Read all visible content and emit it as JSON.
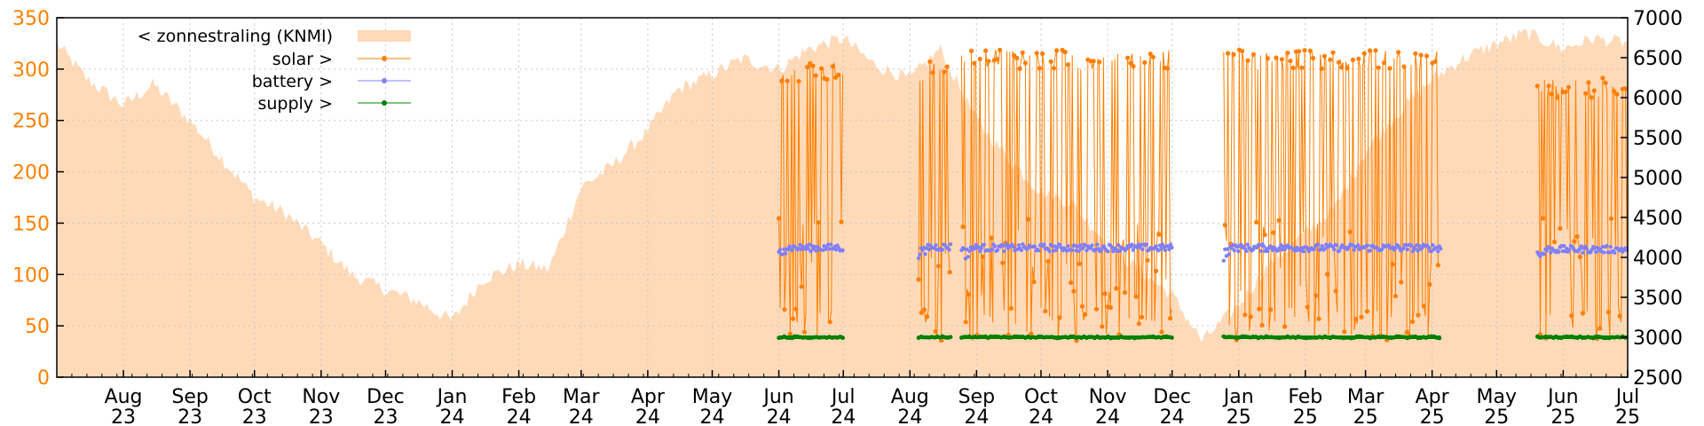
{
  "chart_data": {
    "type": "line",
    "title": "",
    "xlabel": "",
    "ylabel_left": "",
    "ylabel_right": "",
    "x_range": [
      "2023-07",
      "2025-07"
    ],
    "ylim_left": [
      0,
      350
    ],
    "ylim_right": [
      2500,
      7000
    ],
    "y_left_ticks": [
      0,
      50,
      100,
      150,
      200,
      250,
      300,
      350
    ],
    "y_right_ticks": [
      2500,
      3000,
      3500,
      4000,
      4500,
      5000,
      5500,
      6000,
      6500,
      7000
    ],
    "x_ticks": [
      {
        "date": "2023-08",
        "month": "Aug",
        "year": "23"
      },
      {
        "date": "2023-09",
        "month": "Sep",
        "year": "23"
      },
      {
        "date": "2023-10",
        "month": "Oct",
        "year": "23"
      },
      {
        "date": "2023-11",
        "month": "Nov",
        "year": "23"
      },
      {
        "date": "2023-12",
        "month": "Dec",
        "year": "23"
      },
      {
        "date": "2024-01",
        "month": "Jan",
        "year": "24"
      },
      {
        "date": "2024-02",
        "month": "Feb",
        "year": "24"
      },
      {
        "date": "2024-03",
        "month": "Mar",
        "year": "24"
      },
      {
        "date": "2024-04",
        "month": "Apr",
        "year": "24"
      },
      {
        "date": "2024-05",
        "month": "May",
        "year": "24"
      },
      {
        "date": "2024-06",
        "month": "Jun",
        "year": "24"
      },
      {
        "date": "2024-07",
        "month": "Jul",
        "year": "24"
      },
      {
        "date": "2024-08",
        "month": "Aug",
        "year": "24"
      },
      {
        "date": "2024-09",
        "month": "Sep",
        "year": "24"
      },
      {
        "date": "2024-10",
        "month": "Oct",
        "year": "24"
      },
      {
        "date": "2024-11",
        "month": "Nov",
        "year": "24"
      },
      {
        "date": "2024-12",
        "month": "Dec",
        "year": "24"
      },
      {
        "date": "2025-01",
        "month": "Jan",
        "year": "25"
      },
      {
        "date": "2025-02",
        "month": "Feb",
        "year": "25"
      },
      {
        "date": "2025-03",
        "month": "Mar",
        "year": "25"
      },
      {
        "date": "2025-04",
        "month": "Apr",
        "year": "25"
      },
      {
        "date": "2025-05",
        "month": "May",
        "year": "25"
      },
      {
        "date": "2025-06",
        "month": "Jun",
        "year": "25"
      },
      {
        "date": "2025-07",
        "month": "Jul",
        "year": "25"
      }
    ],
    "grid": true,
    "legend_position": "top-left",
    "series": [
      {
        "name": "< zonnestraling (KNMI)",
        "axis": "left",
        "style": "area",
        "color": "#ffdab9",
        "x": [
          "2023-07-01",
          "2023-07-15",
          "2023-08-01",
          "2023-08-15",
          "2023-09-01",
          "2023-09-15",
          "2023-10-01",
          "2023-10-15",
          "2023-11-01",
          "2023-11-15",
          "2023-12-01",
          "2023-12-15",
          "2024-01-01",
          "2024-01-15",
          "2024-02-01",
          "2024-02-15",
          "2024-03-01",
          "2024-03-15",
          "2024-04-01",
          "2024-04-15",
          "2024-05-01",
          "2024-05-15",
          "2024-06-01",
          "2024-06-15",
          "2024-07-01",
          "2024-07-15",
          "2024-08-01",
          "2024-08-15",
          "2024-09-01",
          "2024-09-15",
          "2024-10-01",
          "2024-10-15",
          "2024-11-01",
          "2024-11-15",
          "2024-12-01",
          "2024-12-15",
          "2025-01-01",
          "2025-01-15",
          "2025-02-01",
          "2025-02-15",
          "2025-03-01",
          "2025-03-15",
          "2025-04-01",
          "2025-04-15",
          "2025-05-01",
          "2025-05-15",
          "2025-06-01",
          "2025-06-15",
          "2025-07-01"
        ],
        "values": [
          325,
          290,
          265,
          285,
          250,
          215,
          175,
          160,
          130,
          100,
          85,
          75,
          55,
          95,
          110,
          105,
          185,
          205,
          240,
          280,
          295,
          310,
          300,
          320,
          330,
          305,
          290,
          320,
          250,
          215,
          180,
          170,
          130,
          105,
          80,
          35,
          70,
          110,
          140,
          165,
          220,
          255,
          290,
          310,
          325,
          335,
          320,
          330,
          325
        ]
      },
      {
        "name": "solar >",
        "axis": "right",
        "style": "linespoints",
        "color": "#ff7f00",
        "segments": [
          {
            "start": "2024-06-01",
            "end": "2024-07-01",
            "min": 2950,
            "max": 6450
          },
          {
            "start": "2024-08-05",
            "end": "2024-08-20",
            "min": 2950,
            "max": 6450
          },
          {
            "start": "2024-08-25",
            "end": "2024-12-01",
            "min": 2950,
            "max": 6600
          },
          {
            "start": "2024-12-25",
            "end": "2025-04-05",
            "min": 2950,
            "max": 6600
          },
          {
            "start": "2025-05-20",
            "end": "2025-07-01",
            "min": 2950,
            "max": 6250
          }
        ]
      },
      {
        "name": "battery >",
        "axis": "right",
        "style": "linespoints",
        "color": "#8080ff",
        "segments": [
          {
            "start": "2024-06-01",
            "end": "2024-07-01",
            "level": 4120
          },
          {
            "start": "2024-08-05",
            "end": "2024-08-20",
            "level": 4130
          },
          {
            "start": "2024-08-25",
            "end": "2024-12-01",
            "level": 4120
          },
          {
            "start": "2024-12-25",
            "end": "2025-04-05",
            "level": 4120
          },
          {
            "start": "2025-05-20",
            "end": "2025-07-01",
            "level": 4100
          }
        ]
      },
      {
        "name": "supply >",
        "axis": "right",
        "style": "linespoints",
        "color": "#008000",
        "segments": [
          {
            "start": "2024-06-01",
            "end": "2024-07-01",
            "level": 3000
          },
          {
            "start": "2024-08-05",
            "end": "2024-08-20",
            "level": 3000
          },
          {
            "start": "2024-08-25",
            "end": "2024-12-01",
            "level": 3000
          },
          {
            "start": "2024-12-25",
            "end": "2025-04-05",
            "level": 3000
          },
          {
            "start": "2025-05-20",
            "end": "2025-07-01",
            "level": 3000
          }
        ]
      }
    ]
  }
}
